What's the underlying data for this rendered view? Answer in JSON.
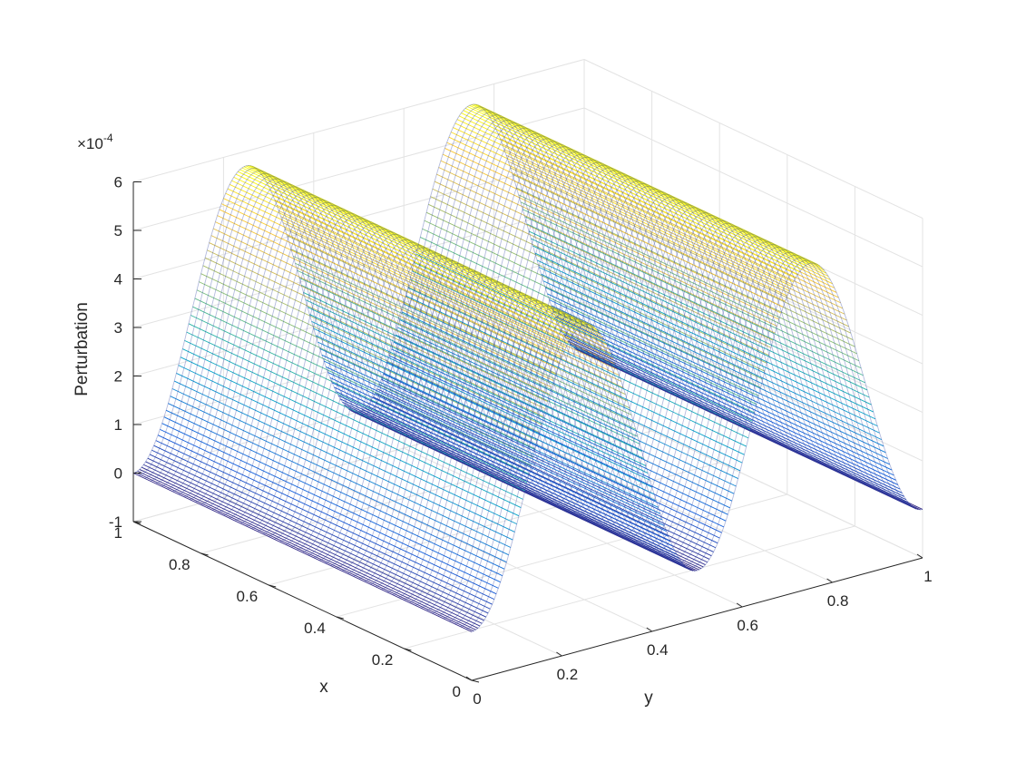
{
  "chart_data": {
    "type": "surface",
    "xlabel": "x",
    "ylabel": "y",
    "zlabel": "Perturbation",
    "z_exponent_label": "×10",
    "z_exponent": "-4",
    "xlim": [
      0,
      1
    ],
    "ylim": [
      0,
      1
    ],
    "zlim": [
      -1,
      6
    ],
    "x_ticks": [
      "0",
      "0.2",
      "0.4",
      "0.6",
      "0.8",
      "1"
    ],
    "y_ticks": [
      "0",
      "0.2",
      "0.4",
      "0.6",
      "0.8",
      "1"
    ],
    "z_ticks": [
      "-1",
      "0",
      "1",
      "2",
      "3",
      "4",
      "5",
      "6"
    ],
    "grid": true,
    "colormap": "parula",
    "colors": [
      "#352a87",
      "#0f5cdd",
      "#1481d6",
      "#06a4ca",
      "#2eb7a4",
      "#87bf77",
      "#d1bb59",
      "#fec832",
      "#f9fb0e"
    ],
    "function": "z = 2.85e-4 * (1 - cos(4*pi*y)), constant in x",
    "y": [
      0,
      0.05,
      0.1,
      0.15,
      0.2,
      0.25,
      0.3,
      0.35,
      0.4,
      0.45,
      0.5,
      0.55,
      0.6,
      0.65,
      0.7,
      0.75,
      0.8,
      0.85,
      0.9,
      0.95,
      1.0
    ],
    "z_e4": [
      0,
      0.54,
      1.97,
      3.73,
      5.16,
      5.7,
      5.16,
      3.73,
      1.97,
      0.54,
      0,
      0.54,
      1.97,
      3.73,
      5.16,
      5.7,
      5.16,
      3.73,
      1.97,
      0.54,
      0
    ]
  }
}
